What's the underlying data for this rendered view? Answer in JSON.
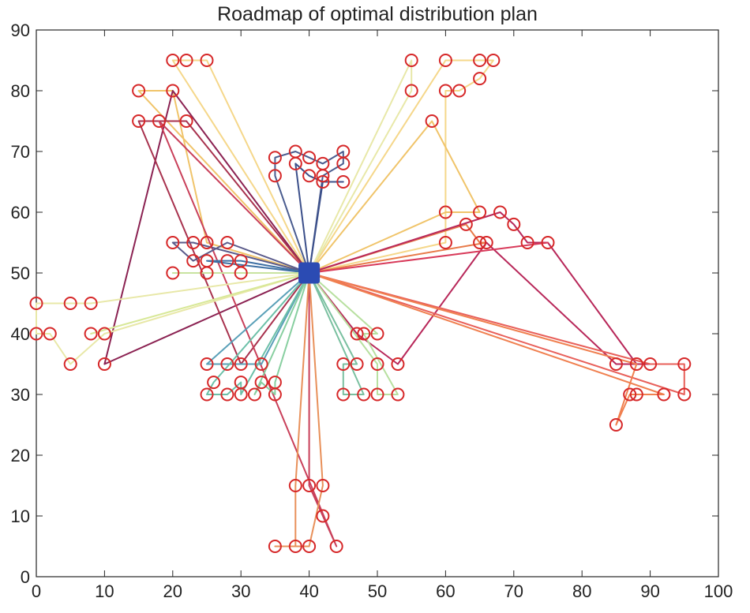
{
  "chart_data": {
    "type": "scatter",
    "title": "Roadmap of optimal distribution plan",
    "xlabel": "",
    "ylabel": "",
    "xlim": [
      0,
      100
    ],
    "ylim": [
      0,
      90
    ],
    "xticks": [
      0,
      10,
      20,
      30,
      40,
      50,
      60,
      70,
      80,
      90,
      100
    ],
    "yticks": [
      0,
      10,
      20,
      30,
      40,
      50,
      60,
      70,
      80,
      90
    ],
    "grid": false,
    "depot": {
      "x": 40,
      "y": 50,
      "color": "#2b4bb3"
    },
    "customer_color": "#d62728",
    "customers": [
      [
        0,
        45
      ],
      [
        5,
        45
      ],
      [
        8,
        45
      ],
      [
        0,
        40
      ],
      [
        2,
        40
      ],
      [
        8,
        40
      ],
      [
        10,
        40
      ],
      [
        5,
        35
      ],
      [
        10,
        35
      ],
      [
        15,
        80
      ],
      [
        20,
        80
      ],
      [
        20,
        85
      ],
      [
        22,
        85
      ],
      [
        25,
        85
      ],
      [
        15,
        75
      ],
      [
        18,
        75
      ],
      [
        22,
        75
      ],
      [
        20,
        55
      ],
      [
        23,
        55
      ],
      [
        25,
        55
      ],
      [
        28,
        55
      ],
      [
        23,
        52
      ],
      [
        25,
        52
      ],
      [
        28,
        52
      ],
      [
        30,
        52
      ],
      [
        20,
        50
      ],
      [
        25,
        50
      ],
      [
        30,
        50
      ],
      [
        25,
        35
      ],
      [
        28,
        35
      ],
      [
        30,
        35
      ],
      [
        33,
        35
      ],
      [
        26,
        32
      ],
      [
        30,
        32
      ],
      [
        33,
        32
      ],
      [
        35,
        32
      ],
      [
        25,
        30
      ],
      [
        28,
        30
      ],
      [
        30,
        30
      ],
      [
        32,
        30
      ],
      [
        35,
        30
      ],
      [
        35,
        69
      ],
      [
        38,
        70
      ],
      [
        40,
        69
      ],
      [
        42,
        68
      ],
      [
        45,
        70
      ],
      [
        35,
        66
      ],
      [
        38,
        68
      ],
      [
        40,
        66
      ],
      [
        42,
        66
      ],
      [
        42,
        65
      ],
      [
        45,
        68
      ],
      [
        45,
        65
      ],
      [
        55,
        85
      ],
      [
        60,
        85
      ],
      [
        65,
        85
      ],
      [
        67,
        85
      ],
      [
        65,
        82
      ],
      [
        55,
        80
      ],
      [
        60,
        80
      ],
      [
        62,
        80
      ],
      [
        58,
        75
      ],
      [
        60,
        60
      ],
      [
        65,
        60
      ],
      [
        68,
        60
      ],
      [
        63,
        58
      ],
      [
        70,
        58
      ],
      [
        60,
        55
      ],
      [
        65,
        55
      ],
      [
        66,
        55
      ],
      [
        72,
        55
      ],
      [
        75,
        55
      ],
      [
        47,
        40
      ],
      [
        48,
        40
      ],
      [
        50,
        40
      ],
      [
        45,
        35
      ],
      [
        47,
        35
      ],
      [
        50,
        35
      ],
      [
        53,
        35
      ],
      [
        45,
        30
      ],
      [
        48,
        30
      ],
      [
        50,
        30
      ],
      [
        53,
        30
      ],
      [
        85,
        35
      ],
      [
        88,
        35
      ],
      [
        90,
        35
      ],
      [
        95,
        35
      ],
      [
        87,
        30
      ],
      [
        88,
        30
      ],
      [
        92,
        30
      ],
      [
        95,
        30
      ],
      [
        85,
        25
      ],
      [
        38,
        15
      ],
      [
        40,
        15
      ],
      [
        42,
        15
      ],
      [
        42,
        10
      ],
      [
        35,
        5
      ],
      [
        38,
        5
      ],
      [
        40,
        5
      ],
      [
        44,
        5
      ]
    ],
    "routes": [
      {
        "color": "#f5d78a",
        "points": [
          [
            40,
            50
          ],
          [
            20,
            85
          ],
          [
            22,
            85
          ],
          [
            25,
            85
          ],
          [
            40,
            50
          ]
        ]
      },
      {
        "color": "#f0c46a",
        "points": [
          [
            40,
            50
          ],
          [
            15,
            80
          ],
          [
            20,
            80
          ],
          [
            25,
            55
          ],
          [
            40,
            50
          ]
        ]
      },
      {
        "color": "#8b2252",
        "points": [
          [
            40,
            50
          ],
          [
            20,
            80
          ],
          [
            10,
            35
          ],
          [
            40,
            50
          ]
        ]
      },
      {
        "color": "#a8324e",
        "points": [
          [
            40,
            50
          ],
          [
            22,
            75
          ],
          [
            15,
            75
          ],
          [
            30,
            35
          ],
          [
            40,
            50
          ]
        ]
      },
      {
        "color": "#c9405a",
        "points": [
          [
            40,
            50
          ],
          [
            18,
            75
          ],
          [
            44,
            5
          ],
          [
            42,
            10
          ],
          [
            40,
            15
          ],
          [
            40,
            50
          ]
        ]
      },
      {
        "color": "#e8e8a8",
        "points": [
          [
            40,
            50
          ],
          [
            8,
            45
          ],
          [
            5,
            45
          ],
          [
            0,
            45
          ],
          [
            0,
            40
          ],
          [
            2,
            40
          ],
          [
            5,
            35
          ],
          [
            10,
            40
          ],
          [
            40,
            50
          ]
        ]
      },
      {
        "color": "#d8e898",
        "points": [
          [
            40,
            50
          ],
          [
            8,
            40
          ],
          [
            40,
            50
          ]
        ]
      },
      {
        "color": "#5a5a8a",
        "points": [
          [
            40,
            50
          ],
          [
            28,
            55
          ],
          [
            23,
            52
          ],
          [
            20,
            55
          ],
          [
            23,
            55
          ],
          [
            40,
            50
          ]
        ]
      },
      {
        "color": "#3d6fa3",
        "points": [
          [
            40,
            50
          ],
          [
            25,
            52
          ],
          [
            28,
            52
          ],
          [
            30,
            52
          ],
          [
            40,
            50
          ]
        ]
      },
      {
        "color": "#c8e3a0",
        "points": [
          [
            40,
            50
          ],
          [
            20,
            50
          ],
          [
            25,
            50
          ],
          [
            30,
            50
          ],
          [
            40,
            50
          ]
        ]
      },
      {
        "color": "#5aa0b8",
        "points": [
          [
            40,
            50
          ],
          [
            25,
            35
          ],
          [
            28,
            35
          ],
          [
            33,
            35
          ],
          [
            40,
            50
          ]
        ]
      },
      {
        "color": "#6cc0a8",
        "points": [
          [
            40,
            50
          ],
          [
            26,
            32
          ],
          [
            25,
            30
          ],
          [
            28,
            30
          ],
          [
            30,
            32
          ],
          [
            30,
            30
          ],
          [
            40,
            50
          ]
        ]
      },
      {
        "color": "#88cfa0",
        "points": [
          [
            40,
            50
          ],
          [
            32,
            30
          ],
          [
            33,
            32
          ],
          [
            35,
            30
          ],
          [
            35,
            32
          ],
          [
            40,
            50
          ]
        ]
      },
      {
        "color": "#4a5c8f",
        "points": [
          [
            40,
            50
          ],
          [
            35,
            66
          ],
          [
            35,
            69
          ],
          [
            38,
            70
          ],
          [
            40,
            69
          ],
          [
            42,
            68
          ],
          [
            45,
            70
          ],
          [
            45,
            68
          ],
          [
            42,
            66
          ],
          [
            40,
            50
          ]
        ]
      },
      {
        "color": "#3b4f8a",
        "points": [
          [
            40,
            50
          ],
          [
            42,
            65
          ],
          [
            45,
            65
          ],
          [
            42,
            65
          ],
          [
            40,
            66
          ],
          [
            38,
            68
          ],
          [
            40,
            50
          ]
        ]
      },
      {
        "color": "#e8e8a8",
        "points": [
          [
            40,
            50
          ],
          [
            55,
            85
          ],
          [
            55,
            80
          ],
          [
            40,
            50
          ]
        ]
      },
      {
        "color": "#f5d78a",
        "points": [
          [
            40,
            50
          ],
          [
            60,
            85
          ],
          [
            65,
            85
          ],
          [
            67,
            85
          ],
          [
            65,
            82
          ],
          [
            62,
            80
          ],
          [
            60,
            80
          ],
          [
            60,
            55
          ],
          [
            40,
            50
          ]
        ]
      },
      {
        "color": "#f0c46a",
        "points": [
          [
            40,
            50
          ],
          [
            58,
            75
          ],
          [
            65,
            60
          ],
          [
            60,
            60
          ],
          [
            40,
            50
          ]
        ]
      },
      {
        "color": "#e87b4a",
        "points": [
          [
            40,
            50
          ],
          [
            63,
            58
          ],
          [
            65,
            55
          ],
          [
            66,
            55
          ],
          [
            40,
            50
          ]
        ]
      },
      {
        "color": "#b8285a",
        "points": [
          [
            40,
            50
          ],
          [
            68,
            60
          ],
          [
            70,
            58
          ],
          [
            72,
            55
          ],
          [
            75,
            55
          ],
          [
            88,
            35
          ],
          [
            90,
            35
          ],
          [
            85,
            35
          ],
          [
            66,
            55
          ],
          [
            53,
            35
          ],
          [
            47,
            40
          ],
          [
            40,
            50
          ]
        ]
      },
      {
        "color": "#d83a5a",
        "points": [
          [
            40,
            50
          ],
          [
            75,
            55
          ],
          [
            40,
            50
          ]
        ]
      },
      {
        "color": "#e8605a",
        "points": [
          [
            40,
            50
          ],
          [
            90,
            35
          ],
          [
            95,
            35
          ],
          [
            95,
            30
          ],
          [
            40,
            50
          ]
        ]
      },
      {
        "color": "#f08050",
        "points": [
          [
            40,
            50
          ],
          [
            92,
            30
          ],
          [
            88,
            30
          ],
          [
            87,
            30
          ],
          [
            85,
            25
          ],
          [
            88,
            35
          ],
          [
            40,
            50
          ]
        ]
      },
      {
        "color": "#7ac0a0",
        "points": [
          [
            40,
            50
          ],
          [
            48,
            30
          ],
          [
            45,
            30
          ],
          [
            45,
            35
          ],
          [
            47,
            35
          ],
          [
            40,
            50
          ]
        ]
      },
      {
        "color": "#b8e0a0",
        "points": [
          [
            40,
            50
          ],
          [
            50,
            35
          ],
          [
            50,
            30
          ],
          [
            53,
            30
          ],
          [
            48,
            40
          ],
          [
            50,
            40
          ],
          [
            40,
            50
          ]
        ]
      },
      {
        "color": "#e8905a",
        "points": [
          [
            40,
            50
          ],
          [
            38,
            15
          ],
          [
            38,
            5
          ],
          [
            35,
            5
          ],
          [
            40,
            5
          ],
          [
            42,
            15
          ],
          [
            40,
            50
          ]
        ]
      }
    ]
  }
}
